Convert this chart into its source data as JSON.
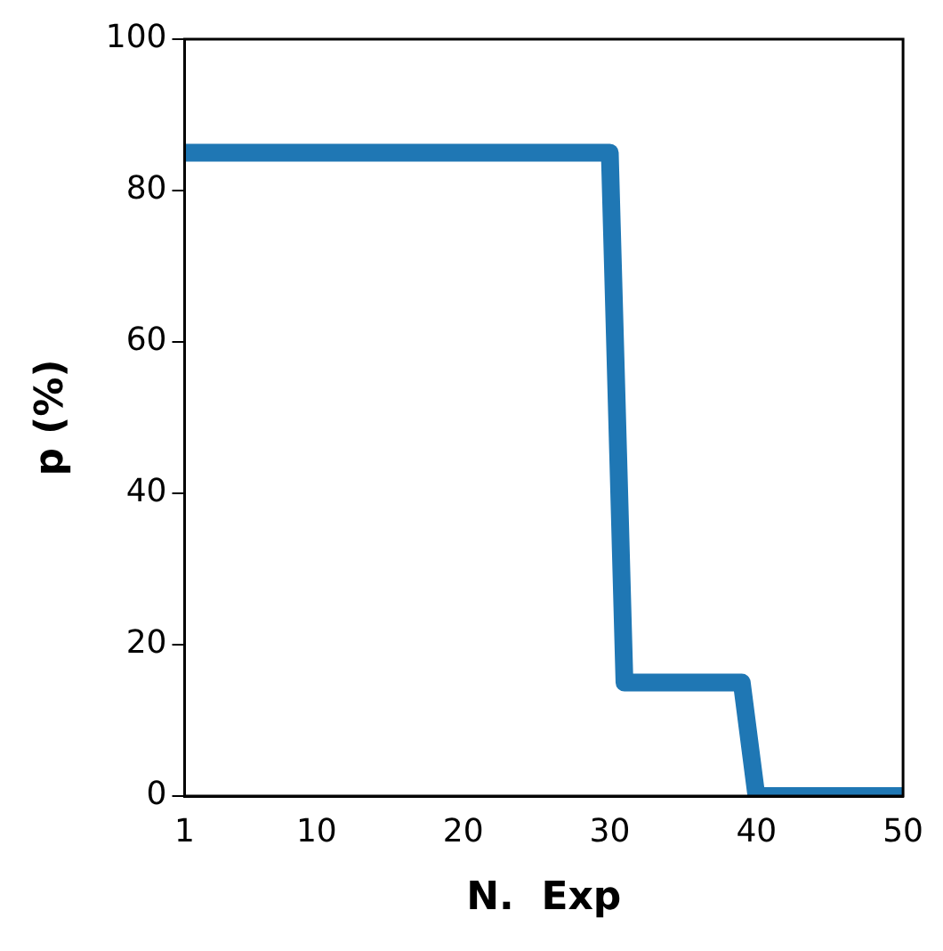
{
  "chart_data": {
    "type": "line",
    "xlabel": "N.  Exp",
    "ylabel": "p (%)",
    "x": [
      1,
      30,
      31,
      39,
      40,
      50
    ],
    "series": [
      {
        "color": "#1f77b4",
        "values": [
          85,
          85,
          15,
          15,
          0,
          0
        ]
      }
    ],
    "xlim": [
      1,
      50
    ],
    "xticks": [
      1,
      10,
      20,
      30,
      40,
      50
    ],
    "ylim": [
      0,
      100
    ],
    "yticks": [
      0,
      20,
      40,
      60,
      80,
      100
    ],
    "grid": false,
    "legend": false,
    "marker": "none",
    "line_style": "solid"
  }
}
